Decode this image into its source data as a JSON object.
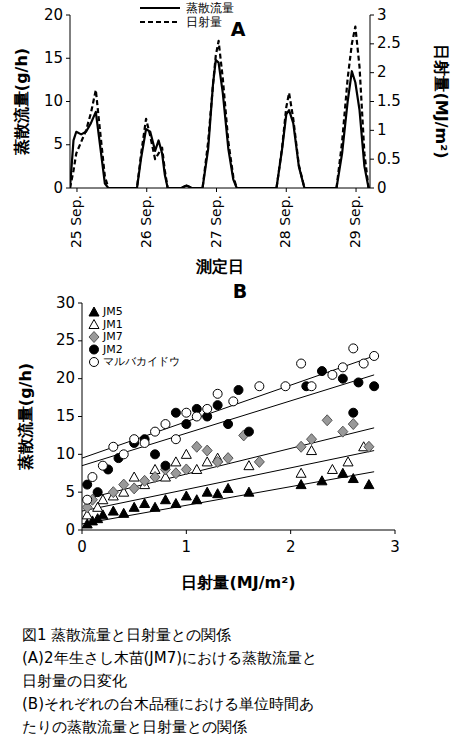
{
  "chart_data": [
    {
      "type": "line",
      "title": "A",
      "x_label": "測定日",
      "y_label": "蒸散流量(g/h)",
      "y2_label": "日射量(MJ/m²)",
      "x": [
        24.9,
        24.95,
        24.99,
        25.06,
        25.13,
        25.2,
        25.27,
        25.33,
        25.4,
        25.45,
        25.86,
        25.92,
        25.99,
        26.05,
        26.12,
        26.17,
        26.22,
        26.26,
        26.3,
        26.5,
        26.57,
        26.64,
        26.8,
        26.88,
        26.95,
        26.99,
        27.03,
        27.09,
        27.17,
        27.24,
        27.29,
        27.86,
        27.94,
        28.0,
        28.04,
        28.1,
        28.18,
        28.26,
        28.72,
        28.8,
        28.88,
        28.94,
        28.99,
        29.05,
        29.12,
        29.18,
        29.2
      ],
      "xlim": [
        24.9,
        29.2
      ],
      "xticks": [
        {
          "value": 25,
          "label": "25 Sep."
        },
        {
          "value": 26,
          "label": "26 Sep."
        },
        {
          "value": 27,
          "label": "27 Sep."
        },
        {
          "value": 28,
          "label": "28 Sep."
        },
        {
          "value": 29,
          "label": "29 Sep."
        }
      ],
      "ylim": [
        0,
        20
      ],
      "yticks": [
        0,
        5,
        10,
        15,
        20
      ],
      "y2lim": [
        0,
        3
      ],
      "y2ticks": [
        0,
        0.5,
        1,
        1.5,
        2,
        2.5,
        3
      ],
      "legend": "top",
      "grid": false,
      "series": [
        {
          "name": "蒸散流量",
          "color": "#000000",
          "line_style": "solid",
          "values": [
            0,
            5.5,
            6.5,
            6.2,
            6.5,
            7.5,
            8.8,
            5,
            0.5,
            0,
            0,
            3.5,
            6.8,
            6.5,
            4.3,
            5.5,
            4,
            1.5,
            0,
            0,
            0.3,
            0,
            0,
            4.5,
            12,
            14.8,
            14.5,
            11,
            4.5,
            1,
            0,
            0,
            4.5,
            8.5,
            9,
            7.5,
            2.5,
            0,
            0,
            4,
            10,
            13.5,
            12.2,
            9,
            2.5,
            0,
            0
          ]
        },
        {
          "name": "日射量",
          "color": "#000000",
          "line_style": "dashed",
          "axis": "y2",
          "values": [
            0,
            0.3,
            0.6,
            0.8,
            1.0,
            1.3,
            1.7,
            1.0,
            0.2,
            0,
            0,
            0.6,
            1.2,
            0.9,
            0.5,
            0.6,
            0.7,
            0.3,
            0,
            0,
            0.05,
            0,
            0,
            0.8,
            1.8,
            2.3,
            2.55,
            1.9,
            0.8,
            0.2,
            0,
            0,
            0.7,
            1.4,
            1.65,
            1.2,
            0.4,
            0,
            0,
            0.8,
            1.9,
            2.5,
            2.8,
            2.1,
            0.6,
            0,
            0
          ]
        }
      ]
    },
    {
      "type": "scatter",
      "title": "B",
      "x_label": "日射量(MJ/m²)",
      "y_label": "蒸散流量(g/h)",
      "xlim": [
        0,
        3
      ],
      "xticks": [
        0,
        1,
        2,
        3
      ],
      "ylim": [
        0,
        30
      ],
      "yticks": [
        0,
        5,
        10,
        15,
        20,
        25,
        30
      ],
      "legend": "top-left",
      "grid": false,
      "series": [
        {
          "name": "JM5",
          "color": "#000000",
          "marker": "triangle",
          "x": [
            0.05,
            0.1,
            0.15,
            0.2,
            0.3,
            0.4,
            0.5,
            0.6,
            0.7,
            0.8,
            0.9,
            1.0,
            1.1,
            1.2,
            1.3,
            1.4,
            1.6,
            2.1,
            2.3,
            2.5,
            2.6,
            2.75
          ],
          "values": [
            0.8,
            1.2,
            1.5,
            2,
            2.5,
            2.2,
            3,
            3.5,
            3,
            4,
            3.5,
            4.5,
            4,
            5,
            4.8,
            5.5,
            5,
            6,
            6.5,
            7.5,
            6.8,
            6
          ],
          "fit_x": [
            0,
            2.8
          ],
          "fit_y": [
            0.8,
            7.7
          ]
        },
        {
          "name": "JM1",
          "color": "#000000",
          "marker": "triangle-open",
          "x": [
            0.05,
            0.15,
            0.2,
            0.3,
            0.4,
            0.5,
            0.6,
            0.7,
            0.8,
            0.9,
            1.0,
            1.1,
            1.2,
            1.3,
            1.6,
            2.1,
            2.2,
            2.4,
            2.55,
            2.7
          ],
          "values": [
            2,
            3,
            4,
            4.5,
            5,
            7,
            6,
            8,
            7,
            9,
            10,
            8,
            9,
            9.5,
            8.5,
            7.5,
            10.5,
            8,
            9,
            11
          ],
          "fit_x": [
            0,
            2.8
          ],
          "fit_y": [
            2.5,
            10.5
          ]
        },
        {
          "name": "JM7",
          "color": "#999999",
          "marker": "diamond",
          "x": [
            0.05,
            0.1,
            0.3,
            0.4,
            0.5,
            0.6,
            0.7,
            0.8,
            0.9,
            1.0,
            1.1,
            1.2,
            1.3,
            1.4,
            1.55,
            1.7,
            2.1,
            2.2,
            2.35,
            2.5,
            2.6,
            2.75
          ],
          "values": [
            3,
            4,
            5,
            6,
            5.5,
            6.5,
            7,
            8,
            7.5,
            8,
            11,
            10.5,
            9,
            9.5,
            12.5,
            9,
            11,
            12,
            14.5,
            13,
            14,
            11
          ],
          "fit_x": [
            0,
            2.8
          ],
          "fit_y": [
            4,
            13.5
          ]
        },
        {
          "name": "JM2",
          "color": "#000000",
          "marker": "circle",
          "x": [
            0.05,
            0.15,
            0.25,
            0.35,
            0.5,
            0.6,
            0.7,
            0.8,
            0.9,
            1.0,
            1.1,
            1.2,
            1.3,
            1.4,
            1.5,
            1.6,
            2.15,
            2.3,
            2.5,
            2.6,
            2.65,
            2.8
          ],
          "values": [
            6,
            5,
            8,
            9.5,
            11.5,
            12,
            10,
            8.5,
            15.5,
            14,
            16,
            15,
            16.5,
            14,
            18.5,
            13,
            19,
            21,
            20,
            15.5,
            19.5,
            19
          ],
          "fit_x": [
            0,
            2.8
          ],
          "fit_y": [
            8.5,
            20.5
          ]
        },
        {
          "name": "マルバカイドウ",
          "color": "#000000",
          "marker": "circle-open",
          "x": [
            0.05,
            0.1,
            0.2,
            0.3,
            0.4,
            0.5,
            0.6,
            0.7,
            0.8,
            0.9,
            1.0,
            1.1,
            1.2,
            1.3,
            1.45,
            1.7,
            1.95,
            2.1,
            2.2,
            2.4,
            2.5,
            2.6,
            2.7,
            2.8
          ],
          "values": [
            4,
            7,
            8.5,
            11,
            10,
            12,
            11.5,
            13,
            14,
            12,
            15.5,
            15,
            16,
            18,
            17,
            19,
            19,
            22,
            19,
            20.5,
            21.5,
            24,
            22,
            23
          ],
          "fit_x": [
            0,
            2.8
          ],
          "fit_y": [
            9.5,
            23
          ]
        }
      ]
    }
  ],
  "caption": [
    "図1 蒸散流量と日射量との関係",
    "(A)2年生さし木苗(JM7)における蒸散流量と",
    "日射量の日変化",
    "(B)それぞれの台木品種における単位時間あ",
    "たりの蒸散流量と日射量との関係"
  ]
}
